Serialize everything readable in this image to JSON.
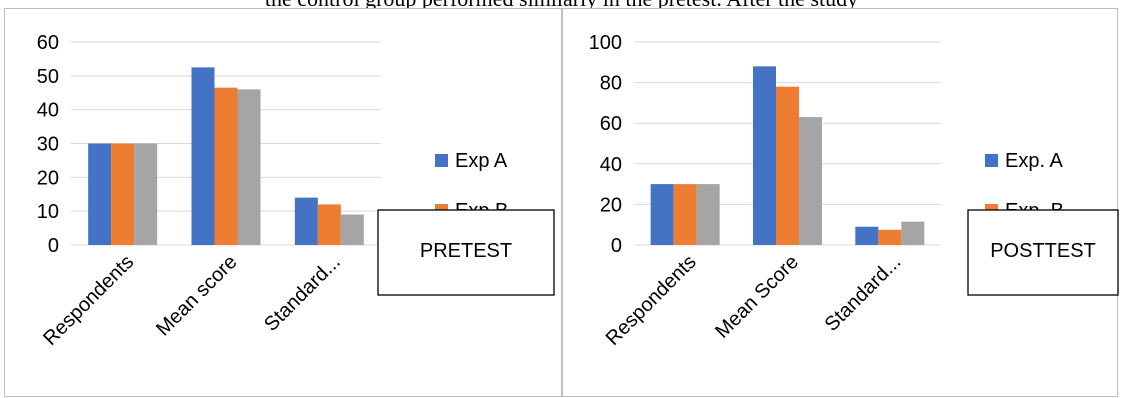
{
  "page": {
    "top_text": "the control group performed similarly in the pretest. After the study"
  },
  "chart_data": [
    {
      "type": "bar",
      "categories": [
        "Respondents",
        "Mean score",
        "Standard..."
      ],
      "series": [
        {
          "name": "Exp A",
          "color": "#4472c4",
          "values": [
            30,
            52.5,
            14
          ]
        },
        {
          "name": "Exp B",
          "color": "#ed7d31",
          "values": [
            30,
            46.5,
            12
          ]
        },
        {
          "name": "",
          "color": "#a5a5a5",
          "values": [
            30,
            46,
            9
          ]
        }
      ],
      "ylim": [
        0,
        60
      ],
      "yticks": [
        0,
        10,
        20,
        30,
        40,
        50,
        60
      ],
      "grid": true,
      "legend": "right",
      "annotation": "PRETEST"
    },
    {
      "type": "bar",
      "categories": [
        "Respondents",
        "Mean Score",
        "Standard..."
      ],
      "series": [
        {
          "name": "Exp. A",
          "color": "#4472c4",
          "values": [
            30,
            88,
            9
          ]
        },
        {
          "name": "Exp. B",
          "color": "#ed7d31",
          "values": [
            30,
            78,
            7.5
          ]
        },
        {
          "name": "",
          "color": "#a5a5a5",
          "values": [
            30,
            63,
            11.5
          ]
        }
      ],
      "ylim": [
        0,
        100
      ],
      "yticks": [
        0,
        20,
        40,
        60,
        80,
        100
      ],
      "grid": true,
      "legend": "right",
      "annotation": "POSTTEST"
    }
  ]
}
